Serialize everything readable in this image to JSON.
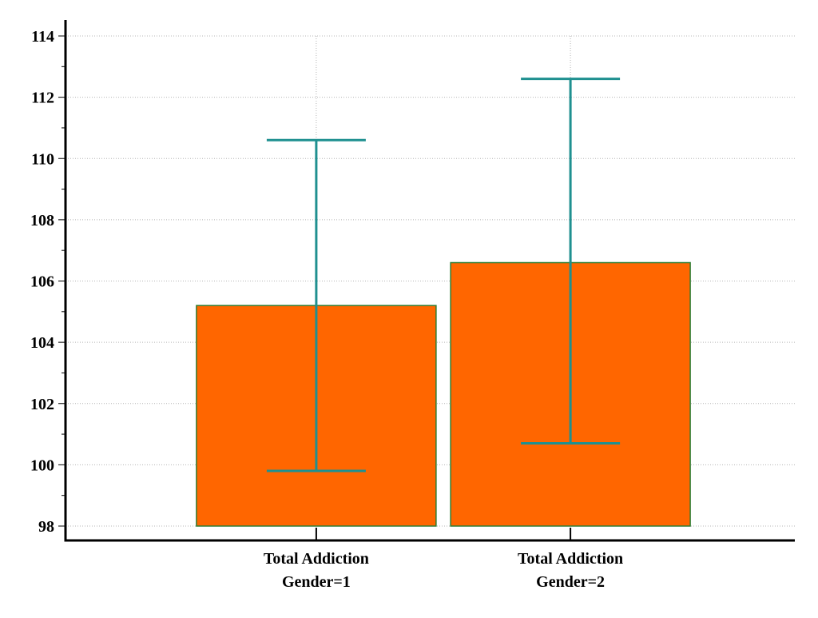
{
  "chart_data": {
    "type": "bar",
    "title": "",
    "xlabel": "",
    "ylabel": "",
    "ylim": [
      98,
      114
    ],
    "y_ticks": [
      "98",
      "100",
      "102",
      "104",
      "106",
      "108",
      "110",
      "112",
      "114"
    ],
    "grid": true,
    "categories": [
      [
        "Total Addiction",
        "Gender=1"
      ],
      [
        "Total Addiction",
        "Gender=2"
      ]
    ],
    "values": [
      105.2,
      106.6
    ],
    "error_bars": [
      {
        "low": 99.8,
        "high": 110.6
      },
      {
        "low": 100.7,
        "high": 112.6
      }
    ],
    "colors": {
      "bar_fill": "#ff6600",
      "bar_edge": "#2e7d32",
      "error_bar": "#1f9090",
      "grid": "#b4b4b4",
      "axis": "#000000"
    }
  }
}
